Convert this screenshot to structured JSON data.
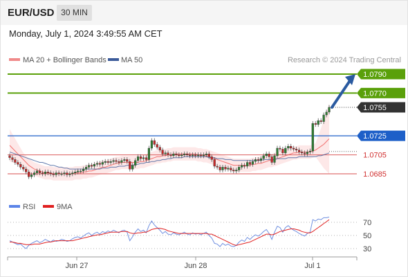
{
  "header": {
    "pair": "EUR/USD",
    "timeframe": "30 MIN",
    "datetime": "Monday, July 1, 2024 3:49:55 AM CET"
  },
  "legend": {
    "ma20_bb": "MA 20 + Bollinger Bands",
    "ma50": "MA 50",
    "source": "Research © 2024 Trading Central"
  },
  "rsi_legend": {
    "rsi": "RSI",
    "ma9": "9MA"
  },
  "colors": {
    "green": "#5aa00a",
    "blue_level": "#1d5fc8",
    "red_level": "#e07070",
    "current_label": "#333333",
    "candle_up": "#2e7d32",
    "candle_down": "#c62828",
    "ma20": "#ef5350",
    "ma50": "#3b5b9a",
    "bb_fill": "#fde2e2",
    "rsi": "#6f8fe0",
    "rsi_ma": "#e02020",
    "arrow": "#2a5aa0"
  },
  "chart_data": {
    "type": "candlestick",
    "price_ylim": [
      1.067,
      1.08
    ],
    "x_ticks": [
      "Jun 27",
      "Jun 28",
      "Jul 1"
    ],
    "levels": [
      {
        "label": "1.0790",
        "value": 1.079,
        "style": "green"
      },
      {
        "label": "1.0770",
        "value": 1.077,
        "style": "green"
      },
      {
        "label": "1.0755",
        "value": 1.0755,
        "style": "current"
      },
      {
        "label": "1.0725",
        "value": 1.0725,
        "style": "blue"
      },
      {
        "label": "1.0705",
        "value": 1.0705,
        "style": "red"
      },
      {
        "label": "1.0685",
        "value": 1.0685,
        "style": "red"
      }
    ],
    "close": [
      1.0702,
      1.07,
      1.0697,
      1.0695,
      1.0692,
      1.069,
      1.0687,
      1.0682,
      1.0684,
      1.0686,
      1.0688,
      1.0686,
      1.0685,
      1.0687,
      1.0686,
      1.0685,
      1.0684,
      1.0686,
      1.0685,
      1.0685,
      1.0686,
      1.0684,
      1.0685,
      1.0686,
      1.0687,
      1.0688,
      1.0688,
      1.069,
      1.0692,
      1.0694,
      1.0693,
      1.0695,
      1.0696,
      1.0695,
      1.0697,
      1.0698,
      1.0697,
      1.0698,
      1.0699,
      1.0698,
      1.0697,
      1.0699,
      1.07,
      1.0698,
      1.069,
      1.0694,
      1.0699,
      1.0703,
      1.0701,
      1.0702,
      1.07,
      1.0712,
      1.072,
      1.0716,
      1.0713,
      1.071,
      1.0706,
      1.0707,
      1.0705,
      1.0704,
      1.0706,
      1.0705,
      1.0704,
      1.0705,
      1.0706,
      1.0705,
      1.0704,
      1.0705,
      1.0704,
      1.0705,
      1.0704,
      1.0705,
      1.0706,
      1.0703,
      1.07,
      1.0693,
      1.0692,
      1.0689,
      1.0692,
      1.069,
      1.0691,
      1.0689,
      1.0688,
      1.0689,
      1.0692,
      1.0694,
      1.0693,
      1.0697,
      1.0695,
      1.0698,
      1.07,
      1.0699,
      1.0701,
      1.0704,
      1.0706,
      1.0703,
      1.0697,
      1.0704,
      1.0712,
      1.0711,
      1.0707,
      1.0712,
      1.0714,
      1.0712,
      1.0711,
      1.071,
      1.0708,
      1.0707,
      1.0706,
      1.0708,
      1.0709,
      1.0738,
      1.0737,
      1.0741,
      1.074,
      1.0747,
      1.075,
      1.0755
    ],
    "ma20": [
      1.0715,
      1.0712,
      1.0709,
      1.0706,
      1.0703,
      1.07,
      1.0697,
      1.0694,
      1.0692,
      1.069,
      1.0689,
      1.0688,
      1.0687,
      1.0686,
      1.0686,
      1.0686,
      1.0685,
      1.0685,
      1.0685,
      1.0685,
      1.0685,
      1.0685,
      1.0685,
      1.0685,
      1.0686,
      1.0686,
      1.0686,
      1.0687,
      1.0687,
      1.0688,
      1.0688,
      1.0689,
      1.069,
      1.0691,
      1.0692,
      1.0692,
      1.0693,
      1.0694,
      1.0695,
      1.0696,
      1.0696,
      1.0697,
      1.0697,
      1.0697,
      1.0697,
      1.0697,
      1.0697,
      1.0697,
      1.0698,
      1.0698,
      1.0699,
      1.07,
      1.0701,
      1.0702,
      1.0703,
      1.0703,
      1.0704,
      1.0704,
      1.0705,
      1.0705,
      1.0706,
      1.0706,
      1.0706,
      1.0706,
      1.0706,
      1.0706,
      1.0706,
      1.0706,
      1.0706,
      1.0705,
      1.0705,
      1.0704,
      1.0704,
      1.0703,
      1.0702,
      1.0701,
      1.07,
      1.0699,
      1.0698,
      1.0697,
      1.0696,
      1.0695,
      1.0694,
      1.0694,
      1.0694,
      1.0694,
      1.0694,
      1.0694,
      1.0694,
      1.0695,
      1.0695,
      1.0696,
      1.0696,
      1.0697,
      1.0698,
      1.0699,
      1.0699,
      1.07,
      1.0701,
      1.0702,
      1.0703,
      1.0704,
      1.0705,
      1.0706,
      1.0707,
      1.0707,
      1.0708,
      1.0708,
      1.0708,
      1.0708,
      1.0708,
      1.0709,
      1.071,
      1.0712,
      1.0714,
      1.0716,
      1.0719,
      1.0722
    ],
    "ma50": [
      1.0708,
      1.0707,
      1.0706,
      1.0705,
      1.0704,
      1.0703,
      1.0702,
      1.0701,
      1.07,
      1.0699,
      1.0698,
      1.0697,
      1.0697,
      1.0696,
      1.0695,
      1.0694,
      1.0694,
      1.0693,
      1.0692,
      1.0692,
      1.0691,
      1.0691,
      1.069,
      1.069,
      1.069,
      1.069,
      1.069,
      1.069,
      1.069,
      1.069,
      1.069,
      1.069,
      1.069,
      1.069,
      1.0691,
      1.0691,
      1.0691,
      1.0692,
      1.0692,
      1.0692,
      1.0693,
      1.0693,
      1.0693,
      1.0694,
      1.0694,
      1.0694,
      1.0695,
      1.0695,
      1.0696,
      1.0696,
      1.0697,
      1.0697,
      1.0698,
      1.0698,
      1.0699,
      1.0699,
      1.07,
      1.07,
      1.0701,
      1.0701,
      1.0702,
      1.0702,
      1.0702,
      1.0702,
      1.0703,
      1.0703,
      1.0703,
      1.0703,
      1.0703,
      1.0703,
      1.0703,
      1.0703,
      1.0703,
      1.0702,
      1.0702,
      1.0702,
      1.0701,
      1.0701,
      1.0701,
      1.07,
      1.07,
      1.07,
      1.0699,
      1.0699,
      1.0699,
      1.0699,
      1.0699,
      1.0699,
      1.0699,
      1.0699,
      1.0699,
      1.0699,
      1.0699,
      1.07,
      1.07,
      1.07,
      1.07,
      1.07,
      1.0701,
      1.0701,
      1.0701,
      1.0701,
      1.0702,
      1.0702,
      1.0702,
      1.0702,
      1.0703,
      1.0703,
      1.0703,
      1.0703,
      1.0703,
      1.0703,
      1.0703,
      1.0704,
      1.0704,
      1.0705,
      1.0706,
      1.0707
    ],
    "rsi": {
      "ylim": [
        20,
        80
      ],
      "ticks": [
        70,
        50,
        30
      ],
      "values": [
        42,
        40,
        38,
        36,
        37,
        33,
        30,
        35,
        38,
        40,
        42,
        39,
        41,
        44,
        42,
        40,
        43,
        41,
        42,
        44,
        43,
        41,
        42,
        45,
        47,
        48,
        46,
        49,
        52,
        54,
        50,
        53,
        55,
        52,
        56,
        54,
        57,
        55,
        58,
        56,
        54,
        57,
        58,
        55,
        42,
        48,
        55,
        60,
        56,
        58,
        54,
        65,
        72,
        66,
        62,
        58,
        53,
        56,
        52,
        51,
        54,
        52,
        51,
        53,
        55,
        52,
        51,
        54,
        52,
        53,
        51,
        53,
        55,
        50,
        46,
        38,
        37,
        33,
        38,
        35,
        37,
        34,
        33,
        35,
        40,
        43,
        41,
        47,
        44,
        48,
        51,
        49,
        52,
        56,
        59,
        53,
        44,
        55,
        64,
        62,
        55,
        62,
        65,
        61,
        58,
        56,
        53,
        51,
        49,
        53,
        55,
        74,
        72,
        75,
        74,
        77,
        77,
        78
      ],
      "ma9": [
        40,
        40,
        39,
        38,
        38,
        37,
        36,
        36,
        36,
        37,
        37,
        37,
        38,
        39,
        40,
        40,
        41,
        42,
        42,
        42,
        42,
        42,
        42,
        42,
        43,
        44,
        45,
        46,
        47,
        48,
        49,
        50,
        51,
        51,
        52,
        53,
        54,
        55,
        55,
        55,
        55,
        56,
        56,
        56,
        54,
        53,
        53,
        54,
        54,
        55,
        55,
        57,
        59,
        60,
        61,
        61,
        60,
        59,
        57,
        56,
        55,
        54,
        53,
        53,
        53,
        53,
        53,
        53,
        53,
        53,
        53,
        53,
        53,
        52,
        52,
        50,
        48,
        46,
        44,
        42,
        40,
        38,
        36,
        35,
        36,
        37,
        38,
        39,
        40,
        42,
        44,
        46,
        48,
        50,
        52,
        52,
        51,
        52,
        54,
        56,
        57,
        58,
        59,
        60,
        60,
        59,
        58,
        56,
        55,
        54,
        54,
        56,
        59,
        62,
        65,
        68,
        71,
        74
      ]
    }
  }
}
